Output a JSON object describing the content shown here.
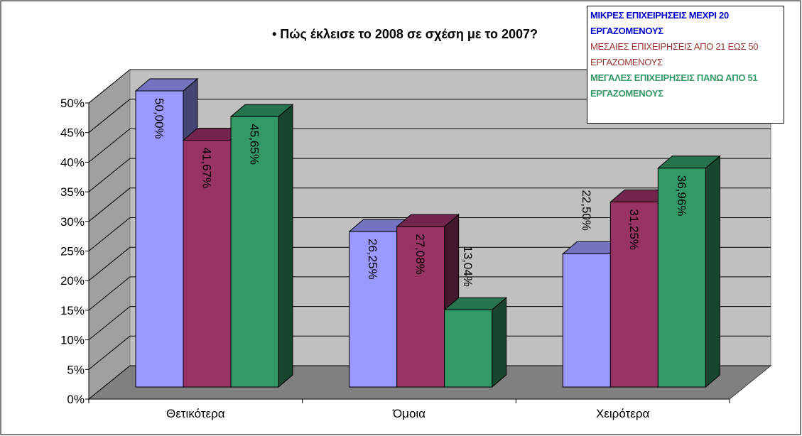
{
  "chart_data": {
    "type": "bar3d",
    "title": "• Πώς έκλεισε το 2008 σε σχέση με το 2007?",
    "categories": [
      "Θετικότερα",
      "Όμοια",
      "Χειρότερα"
    ],
    "series": [
      {
        "name": "ΜΙΚΡΕΣ ΕΠΙΧΕΙΡΗΣΕΙΣ ΜΕΧΡΙ 20 ΕΡΓΑΖΟΜΕΝΟΥΣ",
        "color": "#9999ff",
        "legend_color": "#0000cc",
        "legend_bold": true,
        "values": [
          50.0,
          26.25,
          22.5
        ],
        "value_labels": [
          "50,00%",
          "26,25%",
          "22,50%"
        ]
      },
      {
        "name": "ΜΕΣΑΙΕΣ ΕΠΙΧΕΙΡΗΣΕΙΣ ΑΠΟ 21 ΕΩΣ 50 ΕΡΓΑΖΟΜΕΝΟΥΣ",
        "color": "#993366",
        "legend_color": "#993333",
        "legend_bold": false,
        "values": [
          41.67,
          27.08,
          31.25
        ],
        "value_labels": [
          "41,67%",
          "27,08%",
          "31,25%"
        ]
      },
      {
        "name": "ΜΕΓΑΛΕΣ ΕΠΙΧΕΙΡΗΣΕΙΣ ΠΑΝΩ ΑΠΟ 51 ΕΡΓΑΖΟΜΕΝΟΥΣ",
        "color": "#339966",
        "legend_color": "#339966",
        "legend_bold": true,
        "values": [
          45.65,
          13.04,
          36.96
        ],
        "value_labels": [
          "45,65%",
          "13,04%",
          "36,96%"
        ]
      }
    ],
    "ylim": [
      0,
      50
    ],
    "yticks": [
      {
        "value": 0,
        "label": "0%"
      },
      {
        "value": 5,
        "label": "5%"
      },
      {
        "value": 10,
        "label": "10%"
      },
      {
        "value": 15,
        "label": "15%"
      },
      {
        "value": 20,
        "label": "20%"
      },
      {
        "value": 25,
        "label": "25%"
      },
      {
        "value": 30,
        "label": "30%"
      },
      {
        "value": 35,
        "label": "35%"
      },
      {
        "value": 40,
        "label": "40%"
      },
      {
        "value": 45,
        "label": "45%"
      },
      {
        "value": 50,
        "label": "50%"
      }
    ],
    "grid": true
  }
}
